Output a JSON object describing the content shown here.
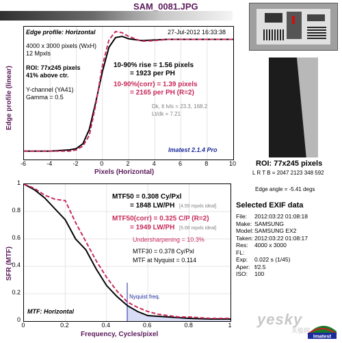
{
  "window": {
    "filename": "SAM_0081.JPG"
  },
  "edge": {
    "title": "Edge profile: Horizontal",
    "date": "27-Jul-2012 16:33:38",
    "info": [
      "4000 x 3000 pixels (WxH)",
      "12 Mpxls"
    ],
    "roi_lines": [
      "ROI: 77x245 pixels",
      "41% above ctr."
    ],
    "channel_lines": [
      "Y-channel (YA41)",
      "Gamma = 0.5"
    ],
    "rise1": "10-90% rise = 1.56 pixels",
    "rise2": "= 1923 per PH",
    "rise3": "10-90%(corr) = 1.39 pixels",
    "rise4": "= 2165 per PH   (R=2)",
    "dk1": "Dk, lt lvls = 23.3, 168.2",
    "dk2": "Lt/dk = 7.21",
    "version": "Imatest 2.1.4 Pro",
    "ylabel": "Edge profile (linear)",
    "xlabel": "Pixels (Horizontal)",
    "xticks": [
      "-6",
      "-4",
      "-2",
      "0",
      "2",
      "4",
      "6",
      "8",
      "10"
    ]
  },
  "mtf": {
    "mtf50": "MTF50 = 0.308 Cy/Pxl",
    "lwph": "= 1848 LW/PH",
    "ideal1": "[4.55 mpxls ideal]",
    "mtf50c": "MTF50(corr) = 0.325 C/P   (R=2)",
    "lwphc": "= 1949 LW/PH",
    "ideal2": "[5.06 mpxls ideal]",
    "under": "Undersharpening = 10.3%",
    "mtf30": "MTF30 = 0.378 Cy/Pxl",
    "nyq": "MTF at Nyquist = 0.114",
    "nyq_label": "Nyquist freq.",
    "title": "MTF: Horizontal",
    "ylabel": "SFR (MTF)",
    "xlabel": "Frequency, Cycles/pixel",
    "xticks": [
      "0",
      "0.2",
      "0.4",
      "0.6",
      "0.8",
      "1"
    ],
    "yticks": [
      "0",
      "0.2",
      "0.4",
      "0.6",
      "0.8",
      "1"
    ]
  },
  "side": {
    "roi": "ROI: 77x245 pixels",
    "lrtb": "L R  T B = 2047 2123  348 592",
    "angle": "Edge angle = -5.41 degs",
    "exif_title": "Selected EXIF data",
    "exif": [
      {
        "k": "File:",
        "v": "2012:03:22 01:08:18"
      },
      {
        "k": "Make:",
        "v": "SAMSUNG"
      },
      {
        "k": "Model:",
        "v": "SAMSUNG EX2"
      },
      {
        "k": "Taken:",
        "v": "2012:03:22 01:08:17"
      },
      {
        "k": "Res:",
        "v": "4000 x 3000"
      },
      {
        "k": "FL:",
        "v": ""
      },
      {
        "k": "Exp:",
        "v": "0.022 s  (1/45)"
      },
      {
        "k": "Aper:",
        "v": "f/2.5"
      },
      {
        "k": "ISO:",
        "v": "100"
      }
    ],
    "watermark": "yesky",
    "watermark_cn": "天极网",
    "logo": "Imatest"
  },
  "colors": {
    "black": "#000000",
    "red": "#c8285a",
    "purple": "#5a1a5a",
    "blue": "#1a2a9a",
    "fill": "#d8dcf4"
  },
  "chart_data": [
    {
      "type": "line",
      "title": "Edge profile: Horizontal",
      "xlabel": "Pixels (Horizontal)",
      "ylabel": "Edge profile (linear)",
      "xlim": [
        -6,
        10
      ],
      "ylim": [
        0,
        1.1
      ],
      "series": [
        {
          "values": [
            [
              -6,
              0.07
            ],
            [
              -4,
              0.07
            ],
            [
              -2.5,
              0.08
            ],
            [
              -2,
              0.09
            ],
            [
              -1.5,
              0.13
            ],
            [
              -1,
              0.25
            ],
            [
              -0.5,
              0.48
            ],
            [
              0,
              0.73
            ],
            [
              0.5,
              0.93
            ],
            [
              1,
              1.01
            ],
            [
              1.5,
              1.02
            ],
            [
              2,
              1.0
            ],
            [
              3,
              0.985
            ],
            [
              4,
              0.99
            ],
            [
              5,
              0.995
            ],
            [
              6,
              0.995
            ],
            [
              8,
              0.995
            ],
            [
              10,
              0.995
            ]
          ]
        },
        {
          "values": [
            [
              -6,
              0.07
            ],
            [
              -4,
              0.07
            ],
            [
              -2.5,
              0.07
            ],
            [
              -2,
              0.08
            ],
            [
              -1.5,
              0.11
            ],
            [
              -1,
              0.2
            ],
            [
              -0.5,
              0.46
            ],
            [
              0,
              0.78
            ],
            [
              0.5,
              0.99
            ],
            [
              1,
              1.06
            ],
            [
              1.5,
              1.05
            ],
            [
              2,
              1.02
            ],
            [
              3,
              0.98
            ],
            [
              4,
              0.985
            ],
            [
              5,
              0.995
            ],
            [
              6,
              0.995
            ],
            [
              8,
              0.995
            ],
            [
              10,
              0.995
            ]
          ]
        }
      ]
    },
    {
      "type": "line",
      "title": "MTF: Horizontal",
      "xlabel": "Frequency, Cycles/pixel",
      "ylabel": "SFR (MTF)",
      "xlim": [
        0,
        1
      ],
      "ylim": [
        0,
        1
      ],
      "series": [
        {
          "values": [
            [
              0,
              1.0
            ],
            [
              0.05,
              0.96
            ],
            [
              0.1,
              0.9
            ],
            [
              0.15,
              0.82
            ],
            [
              0.2,
              0.74
            ],
            [
              0.25,
              0.6
            ],
            [
              0.3,
              0.52
            ],
            [
              0.35,
              0.38
            ],
            [
              0.4,
              0.26
            ],
            [
              0.45,
              0.18
            ],
            [
              0.5,
              0.114
            ],
            [
              0.55,
              0.07
            ],
            [
              0.6,
              0.04
            ],
            [
              0.65,
              0.035
            ],
            [
              0.7,
              0.03
            ],
            [
              0.75,
              0.025
            ],
            [
              0.8,
              0.02
            ],
            [
              0.9,
              0.015
            ],
            [
              1,
              0.015
            ]
          ]
        },
        {
          "values": [
            [
              0,
              1.0
            ],
            [
              0.05,
              0.97
            ],
            [
              0.1,
              0.92
            ],
            [
              0.15,
              0.89
            ],
            [
              0.2,
              0.88
            ],
            [
              0.25,
              0.72
            ],
            [
              0.3,
              0.58
            ],
            [
              0.35,
              0.44
            ],
            [
              0.4,
              0.32
            ],
            [
              0.45,
              0.22
            ],
            [
              0.5,
              0.14
            ],
            [
              0.55,
              0.1
            ],
            [
              0.6,
              0.07
            ],
            [
              0.65,
              0.05
            ],
            [
              0.7,
              0.04
            ],
            [
              0.75,
              0.03
            ],
            [
              0.8,
              0.03
            ],
            [
              0.9,
              0.02
            ],
            [
              1,
              0.02
            ]
          ]
        }
      ],
      "annotations": [
        {
          "x": 0.5,
          "label": "Nyquist freq."
        }
      ]
    }
  ]
}
